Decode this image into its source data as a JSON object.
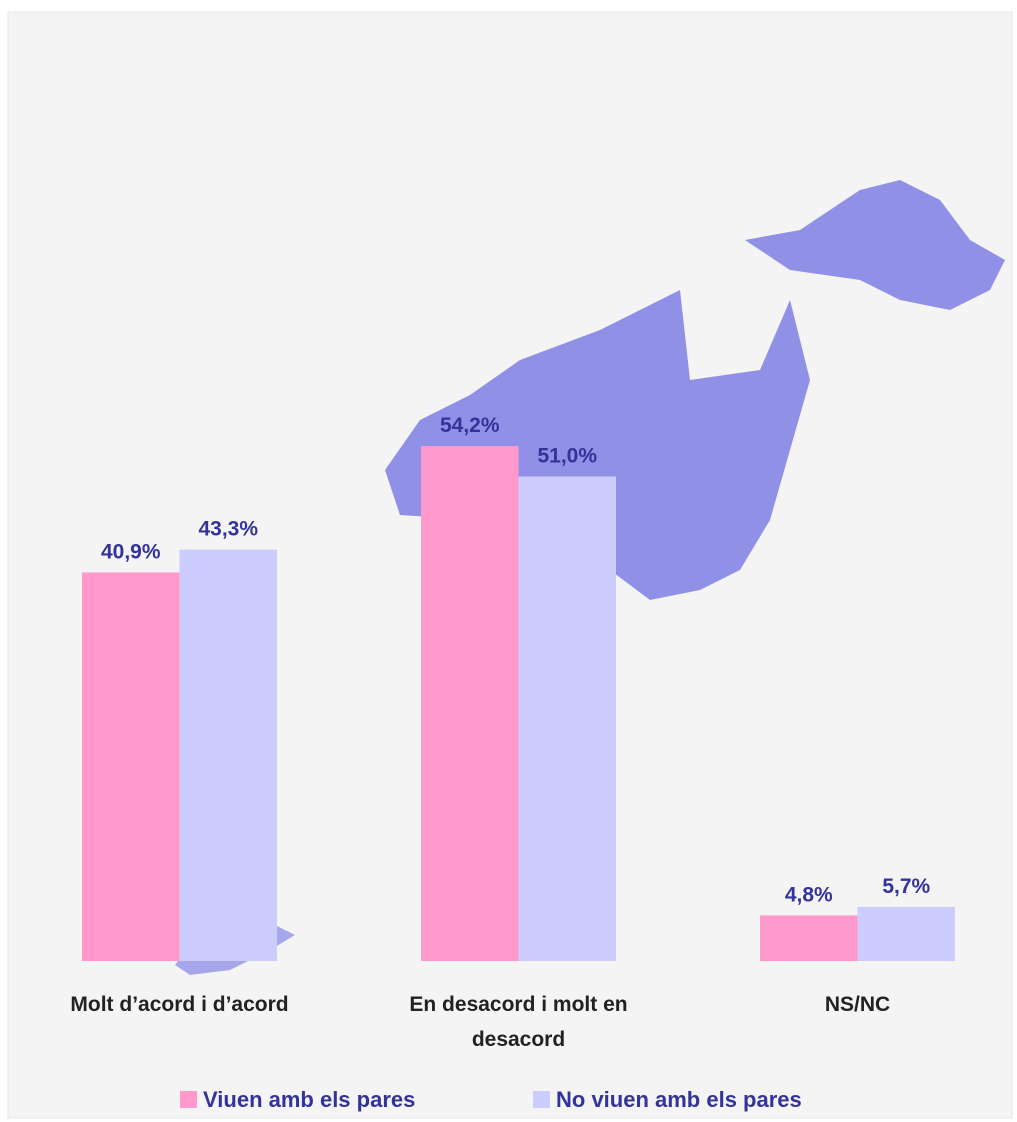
{
  "chart_data": {
    "type": "bar",
    "categories": [
      "Molt d’acord i d’acord",
      "En desacord i molt en desacord",
      "NS/NC"
    ],
    "series": [
      {
        "name": "Viuen amb els pares",
        "color": "#ff99cc",
        "values": [
          40.9,
          54.2,
          4.8
        ],
        "value_labels": [
          "40,9%",
          "54,2%",
          "4,8%"
        ]
      },
      {
        "name": "No viuen amb els pares",
        "color": "#ccccff",
        "values": [
          43.3,
          51.0,
          5.7
        ],
        "value_labels": [
          "43,3%",
          "51,0%",
          "5,7%"
        ]
      }
    ],
    "label_color": "#333399",
    "legend": "bottom"
  }
}
